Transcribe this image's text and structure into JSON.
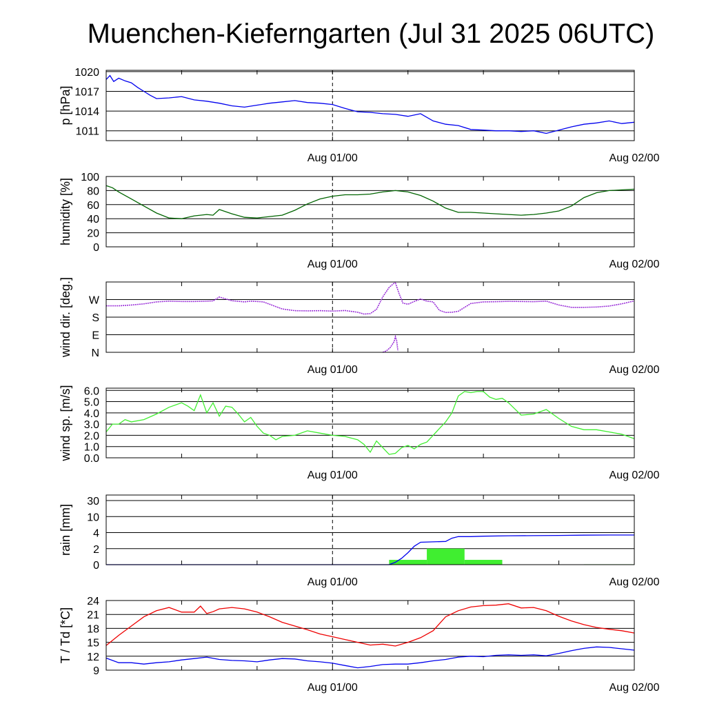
{
  "chart_data": {
    "type": "line",
    "title": "Muenchen-Kieferngarten (Jul 31 2025 06UTC)",
    "x_axis": {
      "range_hours": [
        0,
        42
      ],
      "tick_labels": [
        {
          "label": "Aug 01/00",
          "hour": 18
        },
        {
          "label": "Aug 02/00",
          "hour": 42
        }
      ]
    },
    "panels": [
      {
        "id": "pressure",
        "type": "line",
        "ylabel": "p [hPa]",
        "ylim": [
          1009.5,
          1020.2
        ],
        "yticks": [
          1011,
          1014,
          1017,
          1020
        ],
        "ytick_labels": [
          "1011",
          "1014",
          "1017",
          "1020"
        ],
        "grid": true,
        "series": [
          {
            "color": "#0000ee",
            "x": [
              0,
              0.3,
              0.6,
              1,
              1.5,
              2,
              2.5,
              3,
              3.5,
              4,
              5,
              6,
              7,
              8,
              9,
              10,
              11,
              12,
              13,
              14,
              15,
              16,
              17,
              18,
              19,
              20,
              21,
              22,
              23,
              24,
              25,
              26,
              27,
              28,
              29,
              30,
              31,
              32,
              33,
              34,
              35,
              36,
              37,
              38,
              39,
              40,
              41,
              42
            ],
            "y": [
              1018.8,
              1019.4,
              1018.5,
              1019.0,
              1018.6,
              1018.3,
              1017.6,
              1017.0,
              1016.4,
              1015.9,
              1016.0,
              1016.2,
              1015.7,
              1015.5,
              1015.2,
              1014.8,
              1014.6,
              1014.9,
              1015.2,
              1015.4,
              1015.6,
              1015.3,
              1015.2,
              1015.0,
              1014.4,
              1013.9,
              1013.8,
              1013.6,
              1013.5,
              1013.2,
              1013.6,
              1012.5,
              1012.0,
              1011.8,
              1011.2,
              1011.1,
              1011.0,
              1011.0,
              1010.9,
              1011.0,
              1010.6,
              1011.1,
              1011.6,
              1012.0,
              1012.2,
              1012.5,
              1012.1,
              1012.3
            ]
          }
        ]
      },
      {
        "id": "humidity",
        "type": "line",
        "ylabel": "humidity [%]",
        "ylim": [
          0,
          100
        ],
        "yticks": [
          0,
          20,
          40,
          60,
          80,
          100
        ],
        "ytick_labels": [
          "0",
          "20",
          "40",
          "60",
          "80",
          "100"
        ],
        "grid": true,
        "series": [
          {
            "color": "#006400",
            "x": [
              0,
              0.5,
              1,
              2,
              3,
              4,
              5,
              6,
              7,
              8,
              8.5,
              9,
              10,
              11,
              12,
              13,
              14,
              15,
              16,
              17,
              18,
              19,
              20,
              21,
              22,
              23,
              24,
              25,
              26,
              27,
              28,
              29,
              30,
              31,
              32,
              33,
              34,
              35,
              36,
              37,
              38,
              39,
              40,
              41,
              42
            ],
            "y": [
              87,
              84,
              78,
              68,
              58,
              48,
              41,
              40,
              44,
              46,
              45,
              53,
              47,
              42,
              41,
              43,
              45,
              52,
              61,
              68,
              72,
              74,
              74,
              75,
              78,
              80,
              78,
              73,
              65,
              55,
              49,
              49,
              48,
              47,
              46,
              45,
              46,
              48,
              51,
              58,
              70,
              77,
              80,
              81,
              82
            ]
          }
        ]
      },
      {
        "id": "wind-direction",
        "type": "scatter",
        "ylabel": "wind dir. [deg.]",
        "ylim": [
          0,
          360
        ],
        "yticks": [
          0,
          90,
          180,
          270
        ],
        "ytick_labels": [
          "N",
          "E",
          "S",
          "W"
        ],
        "grid": true,
        "series": [
          {
            "color": "#9a30d8",
            "x": [
              0,
              1,
              2,
              3,
              4,
              5,
              6,
              7,
              8,
              8.5,
              9,
              10,
              11,
              11.5,
              12,
              12.5,
              13,
              13.5,
              14,
              15,
              16,
              17,
              18,
              19,
              20,
              20.5,
              21,
              21.5,
              22,
              22.5,
              23
            ],
            "y": [
              238,
              238,
              242,
              248,
              258,
              262,
              260,
              260,
              262,
              263,
              283,
              264,
              258,
              262,
              260,
              258,
              246,
              234,
              222,
              213,
              212,
              213,
              211,
              214,
              205,
              196,
              198,
              220,
              284,
              332,
              360
            ]
          },
          {
            "color": "#9a30d8",
            "x": [
              22,
              22.3,
              22.6,
              22.9,
              23.0,
              23.1,
              23.2
            ],
            "y": [
              0,
              8,
              25,
              55,
              80,
              60,
              8
            ]
          },
          {
            "color": "#9a30d8",
            "x": [
              23,
              23.3,
              23.6,
              24,
              24.5,
              25,
              25.5,
              26,
              26.5,
              27,
              27.5,
              28,
              29,
              30,
              31,
              32,
              33,
              34,
              35,
              36,
              37,
              38,
              39,
              40,
              41,
              42
            ],
            "y": [
              355,
              300,
              252,
              246,
              260,
              273,
              262,
              258,
              215,
              204,
              205,
              210,
              250,
              258,
              259,
              261,
              260,
              259,
              262,
              242,
              230,
              230,
              232,
              237,
              248,
              263
            ]
          }
        ]
      },
      {
        "id": "wind-speed",
        "type": "line",
        "ylabel": "wind sp. [m/s]",
        "ylim": [
          0,
          6.2
        ],
        "yticks": [
          0,
          1,
          2,
          3,
          4,
          5,
          6
        ],
        "ytick_labels": [
          "0.0",
          "1.0",
          "2.0",
          "3.0",
          "4.0",
          "5.0",
          "6.0"
        ],
        "grid": true,
        "series": [
          {
            "color": "#40ee30",
            "x": [
              0,
              0.5,
              1,
              1.5,
              2,
              3,
              4,
              5,
              6,
              6.5,
              7,
              7.5,
              8,
              8.5,
              9,
              9.5,
              10,
              10.5,
              11,
              11.5,
              12,
              12.5,
              13,
              13.5,
              14,
              15,
              16,
              17,
              18,
              19,
              20,
              20.5,
              21,
              21.5,
              22,
              22.5,
              23,
              23.5,
              24,
              24.5,
              25,
              25.5,
              26,
              26.5,
              27,
              27.5,
              28,
              28.5,
              29,
              29.5,
              30,
              30.5,
              31,
              31.5,
              32,
              33,
              34,
              35,
              36,
              37,
              38,
              39,
              40,
              41,
              42
            ],
            "y": [
              2.3,
              3.0,
              3.0,
              3.4,
              3.2,
              3.4,
              3.9,
              4.5,
              4.9,
              4.6,
              4.2,
              5.6,
              4.0,
              4.9,
              3.7,
              4.6,
              4.5,
              3.9,
              3.2,
              3.6,
              2.8,
              2.2,
              2.0,
              1.6,
              1.9,
              2.0,
              2.4,
              2.2,
              2.0,
              1.9,
              1.6,
              1.2,
              0.5,
              1.5,
              0.9,
              0.3,
              0.4,
              0.9,
              1.1,
              0.8,
              1.2,
              1.4,
              2.0,
              2.6,
              3.2,
              4.0,
              5.5,
              5.9,
              5.8,
              5.9,
              5.9,
              5.4,
              5.2,
              5.3,
              4.9,
              3.8,
              3.9,
              4.3,
              3.5,
              2.8,
              2.5,
              2.5,
              2.3,
              2.1,
              1.7
            ]
          }
        ]
      },
      {
        "id": "rain",
        "type": "bar",
        "ylabel": "rain [mm]",
        "ytick_labels": [
          "0",
          "2",
          "4",
          "10",
          "30"
        ],
        "ytick_values": [
          0,
          2,
          4,
          10,
          30
        ],
        "scale": "piecewise",
        "grid": true,
        "bars": {
          "color": "#40ee30",
          "items": [
            {
              "x_start": 22.5,
              "x_end": 25.5,
              "value": 0.6
            },
            {
              "x_start": 25.5,
              "x_end": 28.5,
              "value": 2.0
            },
            {
              "x_start": 28.5,
              "x_end": 31.5,
              "value": 0.6
            },
            {
              "x_start": 38,
              "x_end": 42,
              "value": 0.05
            }
          ]
        },
        "series": [
          {
            "color": "#0000ee",
            "x": [
              0,
              22.5,
              23,
              23.5,
              24,
              24.5,
              25,
              26,
              27,
              27.5,
              28,
              29,
              30,
              32,
              34,
              36,
              38,
              40,
              42
            ],
            "y": [
              0,
              0,
              0.3,
              0.8,
              1.5,
              2.3,
              2.8,
              2.85,
              2.9,
              3.3,
              3.5,
              3.5,
              3.55,
              3.6,
              3.62,
              3.65,
              3.68,
              3.7,
              3.7
            ]
          }
        ]
      },
      {
        "id": "temperature",
        "type": "line",
        "ylabel": "T / Td [*C]",
        "ylim": [
          9,
          24
        ],
        "yticks": [
          9,
          12,
          15,
          18,
          21,
          24
        ],
        "ytick_labels": [
          "9",
          "12",
          "15",
          "18",
          "21",
          "24"
        ],
        "grid": true,
        "series": [
          {
            "name": "T",
            "color": "#ee0000",
            "x": [
              0,
              1,
              2,
              3,
              4,
              5,
              6,
              7,
              7.5,
              8,
              8.5,
              9,
              10,
              11,
              12,
              13,
              14,
              15,
              16,
              17,
              18,
              19,
              20,
              21,
              22,
              23,
              24,
              25,
              26,
              27,
              28,
              29,
              30,
              31,
              32,
              33,
              34,
              35,
              36,
              37,
              38,
              39,
              40,
              41,
              42
            ],
            "y": [
              14.3,
              16.5,
              18.5,
              20.5,
              21.8,
              22.5,
              21.5,
              21.5,
              22.8,
              21.2,
              21.6,
              22.2,
              22.5,
              22.2,
              21.5,
              20.5,
              19.3,
              18.5,
              17.7,
              16.8,
              16.2,
              15.6,
              15.0,
              14.4,
              14.6,
              14.2,
              15.0,
              16.0,
              17.5,
              20.5,
              21.8,
              22.6,
              22.9,
              23.0,
              23.3,
              22.4,
              22.5,
              21.8,
              20.6,
              19.6,
              18.8,
              18.2,
              17.8,
              17.5,
              17.0
            ]
          },
          {
            "name": "Td",
            "color": "#0000ee",
            "x": [
              0,
              1,
              2,
              3,
              4,
              5,
              6,
              7,
              8,
              9,
              10,
              11,
              12,
              13,
              14,
              15,
              16,
              17,
              18,
              19,
              20,
              21,
              22,
              23,
              24,
              25,
              26,
              27,
              28,
              29,
              30,
              31,
              32,
              33,
              34,
              35,
              36,
              37,
              38,
              39,
              40,
              41,
              42
            ],
            "y": [
              11.6,
              10.6,
              10.6,
              10.3,
              10.6,
              10.8,
              11.2,
              11.5,
              11.8,
              11.3,
              11.1,
              11.0,
              10.8,
              11.2,
              11.5,
              11.4,
              11.0,
              10.8,
              10.5,
              10.0,
              9.5,
              9.8,
              10.2,
              10.3,
              10.3,
              10.6,
              11.0,
              11.3,
              11.8,
              12.0,
              11.9,
              12.2,
              12.3,
              12.2,
              12.3,
              12.1,
              12.6,
              13.2,
              13.7,
              14.0,
              13.9,
              13.6,
              13.3
            ]
          }
        ]
      }
    ]
  }
}
